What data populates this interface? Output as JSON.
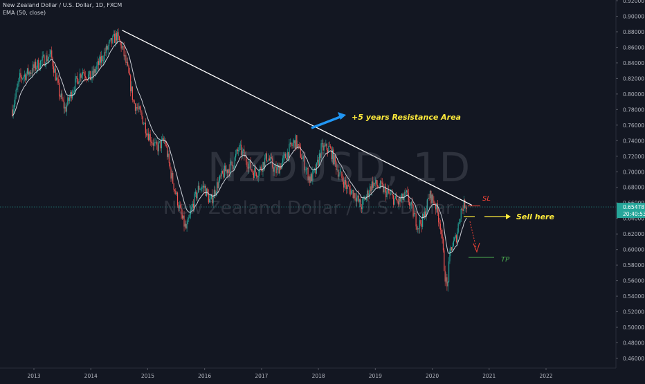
{
  "header": {
    "symbol_line": "New Zealand Dollar / U.S. Dollar, 1D, FXCM",
    "indicator_line": "EMA (50, close)"
  },
  "watermark": {
    "ticker": "NZDUSD, 1D",
    "name": "New Zealand Dollar / U.S. Dollar"
  },
  "price_badge": {
    "price": "0.65478",
    "countdown": "20:40:53"
  },
  "annotations": {
    "resistance": "+5 years Resistance Area",
    "sell": "Sell here",
    "stop_loss": "SL",
    "take_profit": "TP"
  },
  "colors": {
    "background": "#131722",
    "up_candle": "#26a69a",
    "down_candle": "#ef5350",
    "ema": "#e0e3eb",
    "trendline": "#ffffff",
    "price_line": "#26a69a",
    "annotation_yellow": "#ffeb3b",
    "annotation_blue": "#2196f3",
    "sl_red": "#f44336",
    "tp_green": "#4caf50"
  },
  "chart_data": {
    "type": "candlestick",
    "title": "New Zealand Dollar / U.S. Dollar, 1D, FXCM",
    "xlabel": "",
    "ylabel": "",
    "ylim": [
      0.45,
      0.92
    ],
    "xlim": [
      2012.6,
      2023.5
    ],
    "y_ticks": [
      "0.46000",
      "0.48000",
      "0.50000",
      "0.52000",
      "0.54000",
      "0.56000",
      "0.58000",
      "0.60000",
      "0.62000",
      "0.64000",
      "0.66000",
      "0.68000",
      "0.70000",
      "0.72000",
      "0.74000",
      "0.76000",
      "0.78000",
      "0.80000",
      "0.82000",
      "0.84000",
      "0.86000",
      "0.88000",
      "0.90000",
      "0.92000"
    ],
    "x_ticks": [
      "2013",
      "2014",
      "2015",
      "2016",
      "2017",
      "2018",
      "2019",
      "2020",
      "2021",
      "2022"
    ],
    "grid": false,
    "price_path": [
      [
        2012.62,
        0.78
      ],
      [
        2012.75,
        0.82
      ],
      [
        2012.95,
        0.83
      ],
      [
        2013.1,
        0.84
      ],
      [
        2013.3,
        0.85
      ],
      [
        2013.45,
        0.8
      ],
      [
        2013.55,
        0.78
      ],
      [
        2013.7,
        0.81
      ],
      [
        2013.85,
        0.83
      ],
      [
        2014.0,
        0.82
      ],
      [
        2014.15,
        0.84
      ],
      [
        2014.3,
        0.86
      ],
      [
        2014.45,
        0.875
      ],
      [
        2014.55,
        0.86
      ],
      [
        2014.65,
        0.83
      ],
      [
        2014.75,
        0.79
      ],
      [
        2014.9,
        0.77
      ],
      [
        2015.0,
        0.75
      ],
      [
        2015.15,
        0.73
      ],
      [
        2015.3,
        0.74
      ],
      [
        2015.4,
        0.7
      ],
      [
        2015.5,
        0.67
      ],
      [
        2015.6,
        0.64
      ],
      [
        2015.68,
        0.625
      ],
      [
        2015.8,
        0.66
      ],
      [
        2015.9,
        0.68
      ],
      [
        2016.0,
        0.68
      ],
      [
        2016.1,
        0.66
      ],
      [
        2016.2,
        0.68
      ],
      [
        2016.35,
        0.7
      ],
      [
        2016.5,
        0.71
      ],
      [
        2016.6,
        0.73
      ],
      [
        2016.7,
        0.72
      ],
      [
        2016.85,
        0.7
      ],
      [
        2016.95,
        0.7
      ],
      [
        2017.1,
        0.72
      ],
      [
        2017.25,
        0.7
      ],
      [
        2017.35,
        0.71
      ],
      [
        2017.5,
        0.73
      ],
      [
        2017.6,
        0.74
      ],
      [
        2017.7,
        0.72
      ],
      [
        2017.85,
        0.69
      ],
      [
        2017.95,
        0.7
      ],
      [
        2018.05,
        0.73
      ],
      [
        2018.2,
        0.73
      ],
      [
        2018.35,
        0.7
      ],
      [
        2018.5,
        0.68
      ],
      [
        2018.65,
        0.67
      ],
      [
        2018.75,
        0.655
      ],
      [
        2018.85,
        0.67
      ],
      [
        2018.95,
        0.685
      ],
      [
        2019.1,
        0.68
      ],
      [
        2019.25,
        0.67
      ],
      [
        2019.4,
        0.66
      ],
      [
        2019.55,
        0.67
      ],
      [
        2019.65,
        0.65
      ],
      [
        2019.75,
        0.63
      ],
      [
        2019.85,
        0.64
      ],
      [
        2019.95,
        0.67
      ],
      [
        2020.05,
        0.66
      ],
      [
        2020.15,
        0.63
      ],
      [
        2020.22,
        0.57
      ],
      [
        2020.26,
        0.55
      ],
      [
        2020.32,
        0.6
      ],
      [
        2020.42,
        0.615
      ],
      [
        2020.5,
        0.65
      ],
      [
        2020.58,
        0.66
      ],
      [
        2020.62,
        0.655
      ]
    ],
    "series": [
      {
        "name": "EMA (50, close)",
        "type": "line"
      }
    ],
    "trendline": {
      "from": [
        2014.55,
        0.882
      ],
      "to": [
        2020.6,
        0.657
      ]
    },
    "current_price": 0.65478,
    "stop_loss_level": 0.657,
    "take_profit_level": 0.597
  }
}
